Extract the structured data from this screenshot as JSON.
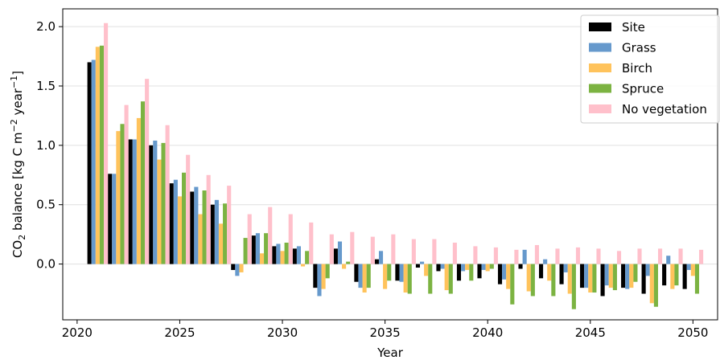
{
  "chart_data": {
    "type": "bar",
    "xlabel": "Year",
    "ylabel_parts": {
      "co": "CO",
      "co_sub": "2",
      "balance": " balance [kg C m",
      "m_exp": "−2",
      "year": " year",
      "year_exp": "−1",
      "close": "]"
    },
    "xlim": [
      2019.3,
      2051.2
    ],
    "ylim": [
      -0.47,
      2.15
    ],
    "xticks": [
      2020,
      2025,
      2030,
      2035,
      2040,
      2045,
      2050
    ],
    "yticks": [
      0.0,
      0.5,
      1.0,
      1.5,
      2.0
    ],
    "ytick_labels": [
      "0.0",
      "0.5",
      "1.0",
      "1.5",
      "2.0"
    ],
    "grid": "horizontal",
    "legend_position": "top-right",
    "x": [
      2021,
      2022,
      2023,
      2024,
      2025,
      2026,
      2027,
      2028,
      2029,
      2030,
      2031,
      2032,
      2033,
      2034,
      2035,
      2036,
      2037,
      2038,
      2039,
      2040,
      2041,
      2042,
      2043,
      2044,
      2045,
      2046,
      2047,
      2048,
      2049,
      2050
    ],
    "series": [
      {
        "name": "Site",
        "color": "#000000",
        "values": [
          1.7,
          0.76,
          1.05,
          1.0,
          0.68,
          0.61,
          0.5,
          -0.05,
          0.24,
          0.15,
          0.13,
          -0.2,
          0.13,
          -0.15,
          0.04,
          -0.14,
          -0.03,
          -0.06,
          -0.14,
          -0.12,
          -0.17,
          -0.04,
          -0.12,
          -0.17,
          -0.2,
          -0.27,
          -0.2,
          -0.25,
          -0.18,
          -0.21
        ]
      },
      {
        "name": "Grass",
        "color": "#6699cc",
        "values": [
          1.72,
          0.76,
          1.05,
          1.04,
          0.71,
          0.65,
          0.54,
          -0.1,
          0.26,
          0.17,
          0.15,
          -0.27,
          0.19,
          -0.2,
          0.11,
          -0.15,
          0.02,
          -0.04,
          -0.06,
          -0.05,
          -0.13,
          0.12,
          0.04,
          -0.07,
          -0.2,
          -0.18,
          -0.21,
          -0.1,
          0.07,
          -0.05
        ]
      },
      {
        "name": "Birch",
        "color": "#ffc35c",
        "values": [
          1.83,
          1.12,
          1.23,
          0.88,
          0.57,
          0.42,
          0.34,
          -0.07,
          0.09,
          0.11,
          -0.02,
          -0.21,
          -0.04,
          -0.24,
          -0.21,
          -0.24,
          -0.1,
          -0.22,
          -0.05,
          -0.06,
          -0.21,
          -0.23,
          -0.14,
          -0.25,
          -0.24,
          -0.2,
          -0.2,
          -0.33,
          -0.21,
          -0.1
        ]
      },
      {
        "name": "Spruce",
        "color": "#7cb342",
        "values": [
          1.84,
          1.18,
          1.37,
          1.02,
          0.77,
          0.62,
          0.51,
          0.22,
          0.26,
          0.18,
          0.11,
          -0.12,
          0.02,
          -0.2,
          -0.14,
          -0.25,
          -0.25,
          -0.25,
          -0.14,
          -0.04,
          -0.34,
          -0.27,
          -0.27,
          -0.38,
          -0.24,
          -0.22,
          -0.15,
          -0.36,
          -0.18,
          -0.25
        ]
      },
      {
        "name": "No vegetation",
        "color": "#ffc0cb",
        "values": [
          2.03,
          1.34,
          1.56,
          1.17,
          0.92,
          0.75,
          0.66,
          0.42,
          0.48,
          0.42,
          0.35,
          0.25,
          0.27,
          0.23,
          0.25,
          0.21,
          0.21,
          0.18,
          0.15,
          0.14,
          0.12,
          0.16,
          0.13,
          0.14,
          0.13,
          0.11,
          0.13,
          0.13,
          0.13,
          0.12
        ]
      }
    ]
  }
}
